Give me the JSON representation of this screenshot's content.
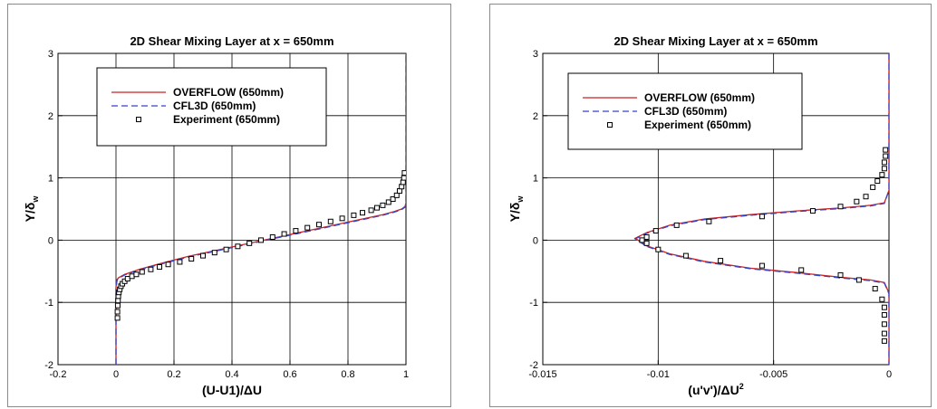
{
  "chart_data": [
    {
      "type": "line",
      "title": "2D Shear Mixing Layer at x = 650mm",
      "xlabel": "(U-U1)/ΔU",
      "ylabel_main": "Y/δ",
      "ylabel_sub": "w",
      "xlim": [
        -0.2,
        1
      ],
      "ylim": [
        -2,
        3
      ],
      "xticks": [
        -0.2,
        0,
        0.2,
        0.4,
        0.6,
        0.8,
        1
      ],
      "xtick_labels": [
        "-0.2",
        "0",
        "0.2",
        "0.4",
        "0.6",
        "0.8",
        "1"
      ],
      "yticks": [
        -2,
        -1,
        0,
        1,
        2,
        3
      ],
      "ytick_labels": [
        "-2",
        "-1",
        "0",
        "1",
        "2",
        "3"
      ],
      "grid": true,
      "legend_placement": "top-left",
      "series": [
        {
          "name": "OVERFLOW (650mm)",
          "style": "solid",
          "color": "#cc2222",
          "x": [
            0,
            0,
            0.004,
            0.01,
            0.03,
            0.08,
            0.15,
            0.25,
            0.35,
            0.45,
            0.55,
            0.65,
            0.75,
            0.85,
            0.92,
            0.96,
            0.985,
            0.997,
            1,
            1
          ],
          "y": [
            -2,
            -0.75,
            -0.63,
            -0.6,
            -0.55,
            -0.47,
            -0.38,
            -0.26,
            -0.16,
            -0.06,
            0.04,
            0.14,
            0.24,
            0.34,
            0.41,
            0.46,
            0.5,
            0.54,
            0.6,
            3
          ]
        },
        {
          "name": "CFL3D (650mm)",
          "style": "dashed",
          "color": "#3344cc",
          "x": [
            0,
            0,
            0.004,
            0.01,
            0.03,
            0.08,
            0.15,
            0.25,
            0.35,
            0.45,
            0.55,
            0.65,
            0.75,
            0.85,
            0.92,
            0.96,
            0.985,
            0.997,
            1,
            1
          ],
          "y": [
            -2,
            -0.75,
            -0.64,
            -0.61,
            -0.56,
            -0.48,
            -0.39,
            -0.27,
            -0.17,
            -0.07,
            0.03,
            0.13,
            0.23,
            0.33,
            0.4,
            0.45,
            0.49,
            0.53,
            0.58,
            3
          ]
        },
        {
          "name": "Experiment (650mm)",
          "style": "square-markers",
          "color": "#000000",
          "x": [
            0.005,
            0.005,
            0.006,
            0.007,
            0.008,
            0.01,
            0.013,
            0.017,
            0.022,
            0.03,
            0.04,
            0.055,
            0.07,
            0.09,
            0.12,
            0.15,
            0.18,
            0.22,
            0.26,
            0.3,
            0.34,
            0.38,
            0.42,
            0.46,
            0.5,
            0.54,
            0.58,
            0.62,
            0.66,
            0.7,
            0.74,
            0.78,
            0.82,
            0.85,
            0.88,
            0.9,
            0.92,
            0.94,
            0.955,
            0.968,
            0.978,
            0.985,
            0.99,
            0.993,
            0.995
          ],
          "y": [
            -1.25,
            -1.15,
            -1.05,
            -0.97,
            -0.9,
            -0.84,
            -0.79,
            -0.74,
            -0.7,
            -0.66,
            -0.62,
            -0.58,
            -0.55,
            -0.51,
            -0.47,
            -0.43,
            -0.39,
            -0.35,
            -0.3,
            -0.25,
            -0.2,
            -0.15,
            -0.1,
            -0.05,
            0,
            0.05,
            0.1,
            0.15,
            0.2,
            0.25,
            0.3,
            0.35,
            0.4,
            0.44,
            0.48,
            0.52,
            0.56,
            0.61,
            0.66,
            0.72,
            0.79,
            0.86,
            0.93,
            1.0,
            1.08
          ]
        }
      ]
    },
    {
      "type": "line",
      "title": "2D Shear Mixing Layer at x = 650mm",
      "xlabel_main": "(u'v')/ΔU",
      "xlabel_sup": "2",
      "ylabel_main": "Y/δ",
      "ylabel_sub": "w",
      "xlim": [
        -0.015,
        0
      ],
      "ylim": [
        -2,
        3
      ],
      "xticks": [
        -0.015,
        -0.01,
        -0.005,
        0
      ],
      "xtick_labels": [
        "-0.015",
        "-0.01",
        "-0.005",
        "0"
      ],
      "yticks": [
        -2,
        -1,
        0,
        1,
        2,
        3
      ],
      "ytick_labels": [
        "-2",
        "-1",
        "0",
        "1",
        "2",
        "3"
      ],
      "grid": true,
      "legend_placement": "top-left",
      "series": [
        {
          "name": "OVERFLOW (650mm)",
          "style": "solid",
          "color": "#cc2222",
          "x": [
            0,
            0,
            -0.0002,
            -0.0008,
            -0.002,
            -0.004,
            -0.006,
            -0.008,
            -0.0095,
            -0.0105,
            -0.011,
            -0.0105,
            -0.0095,
            -0.008,
            -0.006,
            -0.004,
            -0.002,
            -0.0008,
            -0.0002,
            0,
            0
          ],
          "y": [
            3,
            0.8,
            0.6,
            0.56,
            0.52,
            0.47,
            0.41,
            0.34,
            0.24,
            0.12,
            0.03,
            -0.09,
            -0.22,
            -0.34,
            -0.45,
            -0.52,
            -0.6,
            -0.64,
            -0.68,
            -0.85,
            -2
          ]
        },
        {
          "name": "CFL3D (650mm)",
          "style": "dashed",
          "color": "#3344cc",
          "x": [
            0,
            0,
            -0.0002,
            -0.0008,
            -0.002,
            -0.004,
            -0.006,
            -0.008,
            -0.0095,
            -0.0105,
            -0.011,
            -0.0105,
            -0.0095,
            -0.008,
            -0.006,
            -0.004,
            -0.002,
            -0.0008,
            -0.0002,
            0,
            0
          ],
          "y": [
            3,
            0.8,
            0.59,
            0.55,
            0.51,
            0.46,
            0.4,
            0.33,
            0.23,
            0.11,
            0.02,
            -0.1,
            -0.23,
            -0.35,
            -0.46,
            -0.53,
            -0.61,
            -0.65,
            -0.69,
            -0.86,
            -2
          ]
        },
        {
          "name": "Experiment (650mm)",
          "style": "square-markers",
          "color": "#000000",
          "x": [
            -0.00015,
            -0.00015,
            -0.0002,
            -0.0002,
            -0.0003,
            -0.0005,
            -0.0007,
            -0.001,
            -0.0014,
            -0.0021,
            -0.0033,
            -0.0055,
            -0.0078,
            -0.0092,
            -0.0101,
            -0.0105,
            -0.0107,
            -0.0105,
            -0.01,
            -0.0088,
            -0.0073,
            -0.0055,
            -0.0038,
            -0.0021,
            -0.0013,
            -0.0006,
            -0.0003,
            -0.0002,
            -0.0002,
            -0.0002,
            -0.0002,
            -0.0002
          ],
          "y": [
            1.45,
            1.35,
            1.25,
            1.15,
            1.05,
            0.95,
            0.85,
            0.7,
            0.62,
            0.54,
            0.47,
            0.38,
            0.3,
            0.24,
            0.15,
            0.05,
            0.0,
            -0.05,
            -0.15,
            -0.25,
            -0.33,
            -0.41,
            -0.48,
            -0.56,
            -0.64,
            -0.78,
            -0.95,
            -1.08,
            -1.2,
            -1.35,
            -1.5,
            -1.62
          ]
        }
      ]
    }
  ]
}
